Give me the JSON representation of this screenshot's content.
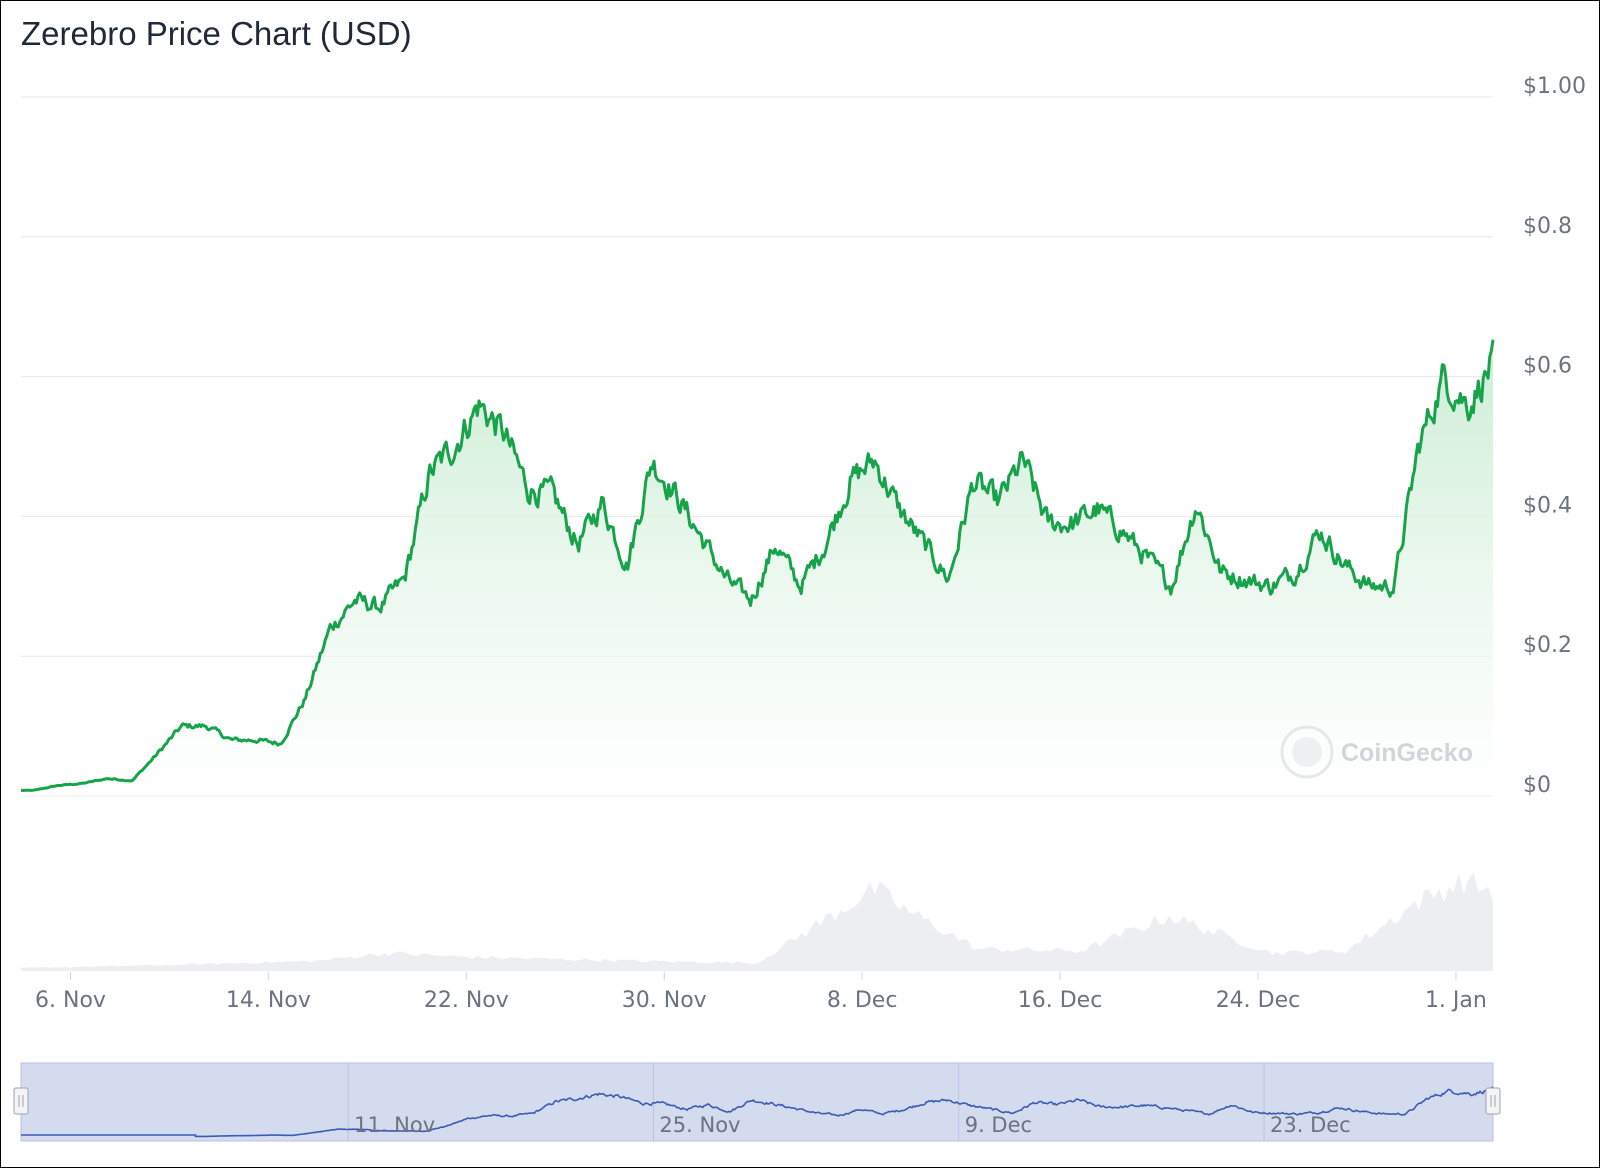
{
  "chart_data": {
    "type": "area",
    "title": "Zerebro Price Chart (USD)",
    "currency": "USD",
    "y_range": [
      0,
      1.0
    ],
    "y_ticks": [
      "$1.00",
      "$0.8",
      "$0.6",
      "$0.4",
      "$0.2",
      "$0"
    ],
    "y_tick_values": [
      1.0,
      0.8,
      0.6,
      0.4,
      0.2,
      0
    ],
    "x_range": [
      "2024-11-04",
      "2025-01-02T12:00"
    ],
    "x_ticks": [
      "6. Nov",
      "14. Nov",
      "22. Nov",
      "30. Nov",
      "8. Dec",
      "16. Dec",
      "24. Dec",
      "1. Jan"
    ],
    "x_tick_dates": [
      "2024-11-06",
      "2024-11-14",
      "2024-11-22",
      "2024-11-30",
      "2024-12-08",
      "2024-12-16",
      "2024-12-24",
      "2025-01-01"
    ],
    "grid": true,
    "legend": "none",
    "watermark": "CoinGecko",
    "colors": {
      "line": "#16a34a",
      "area_top": "#c9ecd2",
      "volume": "#e5e7eb",
      "navigator_line": "#3b5bb5",
      "navigator_bg": "#d5dbef"
    },
    "series": [
      {
        "x": [
          "2024-11-04",
          "2024-11-05",
          "2024-11-06",
          "2024-11-07",
          "2024-11-08",
          "2024-11-09",
          "2024-11-10",
          "2024-11-11",
          "2024-11-12",
          "2024-11-13",
          "2024-11-14",
          "2024-11-15",
          "2024-11-16",
          "2024-11-17",
          "2024-11-18",
          "2024-11-19",
          "2024-11-20",
          "2024-11-21",
          "2024-11-22",
          "2024-11-23",
          "2024-11-24",
          "2024-11-25",
          "2024-11-26",
          "2024-11-27",
          "2024-11-28",
          "2024-11-29",
          "2024-11-30",
          "2024-12-01",
          "2024-12-02",
          "2024-12-03",
          "2024-12-04",
          "2024-12-05",
          "2024-12-06",
          "2024-12-07",
          "2024-12-08",
          "2024-12-09",
          "2024-12-10",
          "2024-12-11",
          "2024-12-12",
          "2024-12-13",
          "2024-12-14",
          "2024-12-15",
          "2024-12-16",
          "2024-12-17",
          "2024-12-18",
          "2024-12-19",
          "2024-12-20",
          "2024-12-21",
          "2024-12-22",
          "2024-12-23",
          "2024-12-24",
          "2024-12-25",
          "2024-12-26",
          "2024-12-27",
          "2024-12-28",
          "2024-12-29",
          "2024-12-30",
          "2024-12-31",
          "2025-01-01",
          "2025-01-02"
        ],
        "values": [
          0.008,
          0.015,
          0.018,
          0.025,
          0.022,
          0.06,
          0.1,
          0.1,
          0.08,
          0.08,
          0.075,
          0.14,
          0.24,
          0.28,
          0.27,
          0.31,
          0.46,
          0.5,
          0.56,
          0.52,
          0.44,
          0.43,
          0.36,
          0.42,
          0.33,
          0.48,
          0.43,
          0.37,
          0.31,
          0.28,
          0.36,
          0.3,
          0.36,
          0.45,
          0.48,
          0.41,
          0.36,
          0.31,
          0.45,
          0.42,
          0.48,
          0.39,
          0.39,
          0.41,
          0.38,
          0.34,
          0.3,
          0.42,
          0.32,
          0.31,
          0.3,
          0.32,
          0.38,
          0.33,
          0.3,
          0.3,
          0.5,
          0.6,
          0.56,
          0.62
        ]
      }
    ],
    "navigator": {
      "ticks": [
        "11. Nov",
        "25. Nov",
        "9. Dec",
        "23. Dec"
      ]
    }
  }
}
